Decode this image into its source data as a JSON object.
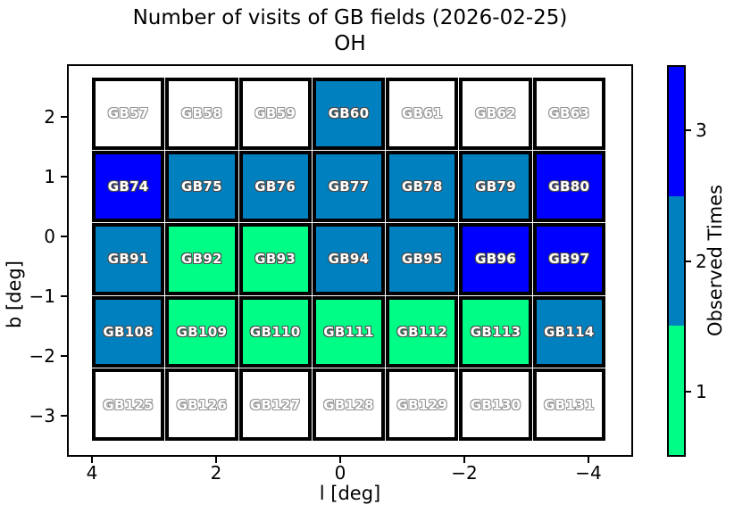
{
  "figure": {
    "title": "Number of visits of GB fields (2026-02-25)",
    "subtitle": "OH"
  },
  "chart_data": {
    "type": "heatmap",
    "title": "Number of visits of GB fields (2026-02-25)",
    "subtitle": "OH",
    "xlabel": "l [deg]",
    "ylabel": "b [deg]",
    "x_tick_labels": [
      "4",
      "2",
      "0",
      "−2",
      "−4"
    ],
    "y_tick_labels": [
      "2",
      "1",
      "0",
      "−1",
      "−2",
      "−3"
    ],
    "x_axis_reversed": true,
    "grid_shape": {
      "rows": 5,
      "cols": 7
    },
    "rows": [
      {
        "cells": [
          {
            "field": "GB57",
            "visits": 0
          },
          {
            "field": "GB58",
            "visits": 0
          },
          {
            "field": "GB59",
            "visits": 0
          },
          {
            "field": "GB60",
            "visits": 2
          },
          {
            "field": "GB61",
            "visits": 0
          },
          {
            "field": "GB62",
            "visits": 0
          },
          {
            "field": "GB63",
            "visits": 0
          }
        ]
      },
      {
        "cells": [
          {
            "field": "GB74",
            "visits": 3
          },
          {
            "field": "GB75",
            "visits": 2
          },
          {
            "field": "GB76",
            "visits": 2
          },
          {
            "field": "GB77",
            "visits": 2
          },
          {
            "field": "GB78",
            "visits": 2
          },
          {
            "field": "GB79",
            "visits": 2
          },
          {
            "field": "GB80",
            "visits": 3
          }
        ]
      },
      {
        "cells": [
          {
            "field": "GB91",
            "visits": 2
          },
          {
            "field": "GB92",
            "visits": 1
          },
          {
            "field": "GB93",
            "visits": 1
          },
          {
            "field": "GB94",
            "visits": 2
          },
          {
            "field": "GB95",
            "visits": 2
          },
          {
            "field": "GB96",
            "visits": 3
          },
          {
            "field": "GB97",
            "visits": 3
          }
        ]
      },
      {
        "cells": [
          {
            "field": "GB108",
            "visits": 2
          },
          {
            "field": "GB109",
            "visits": 1
          },
          {
            "field": "GB110",
            "visits": 1
          },
          {
            "field": "GB111",
            "visits": 1
          },
          {
            "field": "GB112",
            "visits": 1
          },
          {
            "field": "GB113",
            "visits": 1
          },
          {
            "field": "GB114",
            "visits": 2
          }
        ]
      },
      {
        "cells": [
          {
            "field": "GB125",
            "visits": 0
          },
          {
            "field": "GB126",
            "visits": 0
          },
          {
            "field": "GB127",
            "visits": 0
          },
          {
            "field": "GB128",
            "visits": 0
          },
          {
            "field": "GB129",
            "visits": 0
          },
          {
            "field": "GB130",
            "visits": 0
          },
          {
            "field": "GB131",
            "visits": 0
          }
        ]
      }
    ],
    "unobserved_color": "#ffffff",
    "colorbar": {
      "label": "Observed Times",
      "tick_labels_top_to_bottom": [
        "3",
        "2",
        "1"
      ],
      "levels_bottom_to_top": [
        {
          "value": 1,
          "color": "#00fe86"
        },
        {
          "value": 2,
          "color": "#0080bf"
        },
        {
          "value": 3,
          "color": "#0000fe"
        }
      ]
    }
  }
}
